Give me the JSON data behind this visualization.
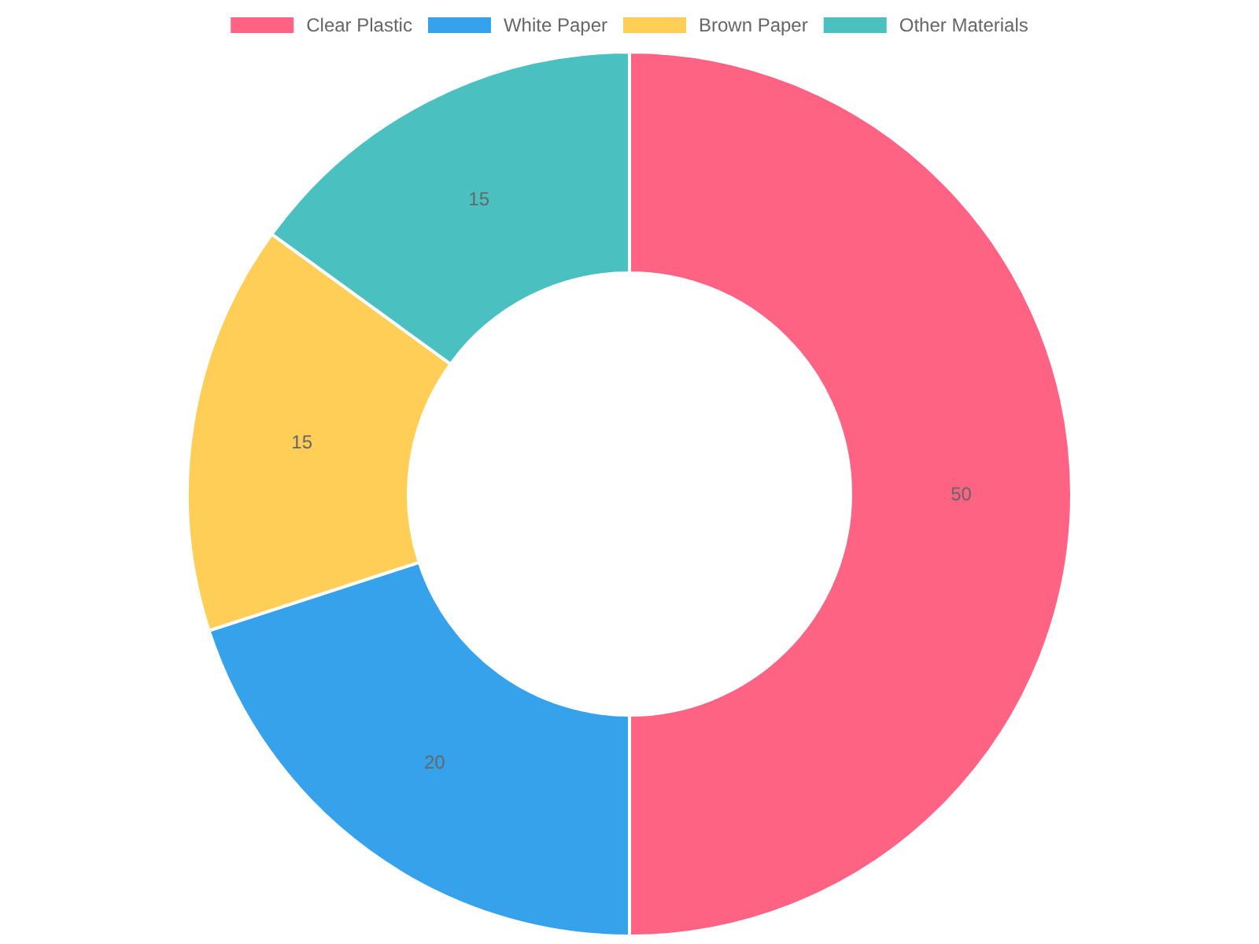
{
  "chart_data": {
    "type": "donut",
    "categories": [
      "Clear Plastic",
      "White Paper",
      "Brown Paper",
      "Other Materials"
    ],
    "values": [
      50,
      20,
      15,
      15
    ],
    "colors": [
      "#ff6384",
      "#36a2eb",
      "#ffce56",
      "#4bc0c0"
    ],
    "legend": "top",
    "data_labels": true
  }
}
